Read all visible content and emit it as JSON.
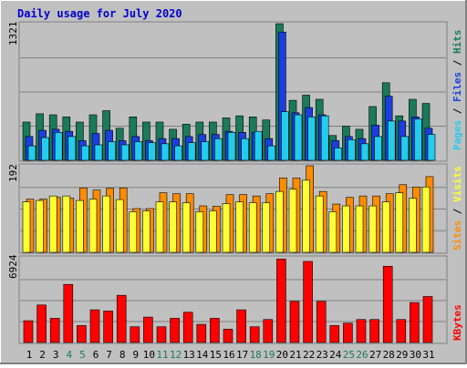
{
  "title": "Daily usage for July 2020",
  "colors": {
    "background": "#c0c0c0",
    "title": "#0000cc",
    "hits": "#1a7a5a",
    "files": "#1a3fdd",
    "pages": "#22ccee",
    "visits": "#ff8c00",
    "sites": "#ffff33",
    "kbytes": "#ff0000",
    "weekend_day": "#1a7a5a",
    "weekday": "#000000"
  },
  "chart_data": [
    {
      "type": "bar",
      "name": "hits-files-pages",
      "ymax_label": "1321",
      "ylim": [
        0,
        1321
      ],
      "legend": [
        "Pages",
        "Files",
        "Hits"
      ],
      "categories": [
        "1",
        "2",
        "3",
        "4",
        "5",
        "6",
        "7",
        "8",
        "9",
        "10",
        "11",
        "12",
        "13",
        "14",
        "15",
        "16",
        "17",
        "18",
        "19",
        "20",
        "21",
        "22",
        "23",
        "24",
        "25",
        "26",
        "27",
        "28",
        "29",
        "30",
        "31"
      ],
      "series": [
        {
          "name": "Hits",
          "values": [
            370,
            450,
            440,
            420,
            370,
            440,
            480,
            310,
            420,
            370,
            370,
            300,
            350,
            370,
            370,
            410,
            430,
            420,
            390,
            1321,
            580,
            630,
            590,
            240,
            330,
            300,
            520,
            750,
            430,
            590,
            550
          ]
        },
        {
          "name": "Files",
          "values": [
            230,
            290,
            300,
            280,
            190,
            260,
            290,
            190,
            230,
            190,
            210,
            210,
            230,
            250,
            250,
            280,
            270,
            270,
            210,
            1240,
            460,
            510,
            440,
            190,
            230,
            210,
            340,
            620,
            380,
            420,
            310
          ]
        },
        {
          "name": "Pages",
          "values": [
            140,
            220,
            270,
            230,
            140,
            150,
            180,
            150,
            180,
            170,
            160,
            140,
            170,
            180,
            210,
            270,
            210,
            280,
            140,
            470,
            440,
            420,
            430,
            120,
            200,
            160,
            230,
            380,
            230,
            400,
            250
          ]
        }
      ]
    },
    {
      "type": "bar",
      "name": "visits-sites",
      "ymax_label": "192",
      "ylim": [
        0,
        192
      ],
      "legend": [
        "Sites",
        "Visits"
      ],
      "categories": [
        "1",
        "2",
        "3",
        "4",
        "5",
        "6",
        "7",
        "8",
        "9",
        "10",
        "11",
        "12",
        "13",
        "14",
        "15",
        "16",
        "17",
        "18",
        "19",
        "20",
        "21",
        "22",
        "23",
        "24",
        "25",
        "26",
        "27",
        "28",
        "29",
        "30",
        "31"
      ],
      "series": [
        {
          "name": "Visits",
          "values": [
            118,
            118,
            122,
            120,
            143,
            138,
            142,
            143,
            97,
            97,
            132,
            130,
            130,
            103,
            102,
            128,
            128,
            125,
            130,
            165,
            165,
            192,
            135,
            107,
            122,
            125,
            125,
            130,
            150,
            145,
            168
          ]
        },
        {
          "name": "Sites",
          "values": [
            112,
            115,
            125,
            125,
            115,
            118,
            125,
            117,
            90,
            92,
            112,
            112,
            110,
            90,
            92,
            108,
            112,
            110,
            110,
            135,
            140,
            160,
            125,
            90,
            103,
            103,
            103,
            112,
            132,
            120,
            145
          ]
        }
      ]
    },
    {
      "type": "bar",
      "name": "kbytes",
      "ymax_label": "6924",
      "ylim": [
        0,
        6924
      ],
      "legend": [
        "KBytes"
      ],
      "categories": [
        "1",
        "2",
        "3",
        "4",
        "5",
        "6",
        "7",
        "8",
        "9",
        "10",
        "11",
        "12",
        "13",
        "14",
        "15",
        "16",
        "17",
        "18",
        "19",
        "20",
        "21",
        "22",
        "23",
        "24",
        "25",
        "26",
        "27",
        "28",
        "29",
        "30",
        "31"
      ],
      "series": [
        {
          "name": "KBytes",
          "values": [
            1800,
            3100,
            2000,
            4800,
            1400,
            2700,
            2600,
            3900,
            1300,
            2100,
            1300,
            2000,
            2500,
            1500,
            2000,
            1100,
            2700,
            1300,
            1900,
            6900,
            3400,
            6700,
            3400,
            1400,
            1600,
            1900,
            1900,
            6300,
            1900,
            3300,
            3800
          ]
        }
      ]
    }
  ],
  "x_labels": [
    {
      "text": "1",
      "weekend": false
    },
    {
      "text": "2",
      "weekend": false
    },
    {
      "text": "3",
      "weekend": false
    },
    {
      "text": "4",
      "weekend": true
    },
    {
      "text": "5",
      "weekend": true
    },
    {
      "text": "6",
      "weekend": false
    },
    {
      "text": "7",
      "weekend": false
    },
    {
      "text": "8",
      "weekend": false
    },
    {
      "text": "9",
      "weekend": false
    },
    {
      "text": "10",
      "weekend": false
    },
    {
      "text": "11",
      "weekend": true
    },
    {
      "text": "12",
      "weekend": true
    },
    {
      "text": "13",
      "weekend": false
    },
    {
      "text": "14",
      "weekend": false
    },
    {
      "text": "15",
      "weekend": false
    },
    {
      "text": "16",
      "weekend": false
    },
    {
      "text": "17",
      "weekend": false
    },
    {
      "text": "18",
      "weekend": true
    },
    {
      "text": "19",
      "weekend": true
    },
    {
      "text": "20",
      "weekend": false
    },
    {
      "text": "21",
      "weekend": false
    },
    {
      "text": "22",
      "weekend": false
    },
    {
      "text": "23",
      "weekend": false
    },
    {
      "text": "24",
      "weekend": false
    },
    {
      "text": "25",
      "weekend": true
    },
    {
      "text": "26",
      "weekend": true
    },
    {
      "text": "27",
      "weekend": false
    },
    {
      "text": "28",
      "weekend": false
    },
    {
      "text": "29",
      "weekend": false
    },
    {
      "text": "30",
      "weekend": false
    },
    {
      "text": "31",
      "weekend": false
    }
  ]
}
